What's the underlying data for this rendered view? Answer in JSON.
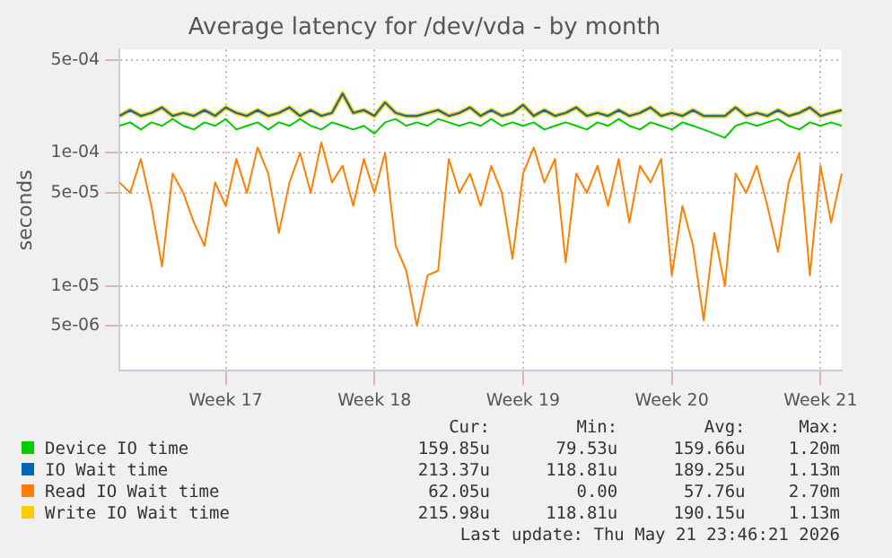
{
  "chart_data": {
    "type": "line",
    "title": "Average latency for /dev/vda - by month",
    "ylabel": "seconds",
    "log": "y",
    "grid": true,
    "legend": "bottom",
    "marker": "none",
    "line_style": "solid",
    "categories": [
      null,
      null,
      null,
      null,
      null,
      null,
      null,
      null,
      null,
      null,
      "Week 17",
      null,
      null,
      null,
      null,
      null,
      null,
      null,
      null,
      null,
      null,
      null,
      null,
      null,
      "Week 18",
      null,
      null,
      null,
      null,
      null,
      null,
      null,
      null,
      null,
      null,
      null,
      null,
      null,
      "Week 19",
      null,
      null,
      null,
      null,
      null,
      null,
      null,
      null,
      null,
      null,
      null,
      null,
      null,
      "Week 20",
      null,
      null,
      null,
      null,
      null,
      null,
      null,
      null,
      null,
      null,
      null,
      null,
      null,
      "Week 21",
      null,
      null
    ],
    "ylim": [
      2.3e-06,
      0.0006
    ],
    "yticks": [
      {
        "value": 0.0005,
        "label": "5e-04"
      },
      {
        "value": 0.0001,
        "label": "1e-04"
      },
      {
        "value": 5e-05,
        "label": "5e-05"
      },
      {
        "value": 1e-05,
        "label": "1e-05"
      },
      {
        "value": 5e-06,
        "label": "5e-06"
      }
    ],
    "series": [
      {
        "name": "Device IO time",
        "color": "#00cc00",
        "values": [
          0.00016,
          0.00017,
          0.00015,
          0.00017,
          0.00016,
          0.00018,
          0.00016,
          0.00015,
          0.00017,
          0.00016,
          0.00018,
          0.00015,
          0.00016,
          0.00017,
          0.00015,
          0.00017,
          0.00016,
          0.00018,
          0.00016,
          0.00015,
          0.00017,
          0.00016,
          0.00015,
          0.00016,
          0.00014,
          0.00017,
          0.00018,
          0.00016,
          0.00017,
          0.00016,
          0.00018,
          0.00017,
          0.00016,
          0.00017,
          0.00016,
          0.00018,
          0.00016,
          0.00017,
          0.00016,
          0.00017,
          0.00015,
          0.00016,
          0.00017,
          0.00016,
          0.00015,
          0.00017,
          0.00016,
          0.00018,
          0.00016,
          0.00015,
          0.00017,
          0.00016,
          0.00015,
          0.00017,
          0.00016,
          0.00015,
          0.00014,
          0.00013,
          0.00016,
          0.00017,
          0.00016,
          0.00017,
          0.00018,
          0.00016,
          0.00015,
          0.00017,
          0.00016,
          0.00017,
          0.00016
        ]
      },
      {
        "name": "IO Wait time",
        "color": "#0066b3",
        "values": [
          0.00019,
          0.00021,
          0.00019,
          0.0002,
          0.00022,
          0.00019,
          0.0002,
          0.00019,
          0.00021,
          0.00019,
          0.00022,
          0.0002,
          0.00019,
          0.00021,
          0.00019,
          0.0002,
          0.00022,
          0.00019,
          0.00021,
          0.00019,
          0.0002,
          0.00028,
          0.0002,
          0.00021,
          0.00019,
          0.00024,
          0.0002,
          0.00019,
          0.00019,
          0.0002,
          0.00021,
          0.00019,
          0.0002,
          0.00022,
          0.00019,
          0.00021,
          0.00019,
          0.0002,
          0.00023,
          0.00019,
          0.00021,
          0.00019,
          0.0002,
          0.00022,
          0.00019,
          0.0002,
          0.00019,
          0.00021,
          0.00019,
          0.0002,
          0.00022,
          0.00019,
          0.0002,
          0.00019,
          0.00021,
          0.00019,
          0.00019,
          0.00019,
          0.00022,
          0.00019,
          0.0002,
          0.00019,
          0.00021,
          0.00019,
          0.0002,
          0.00022,
          0.00019,
          0.0002,
          0.00021
        ]
      },
      {
        "name": "Read IO Wait time",
        "color": "#ff8000",
        "values": [
          6e-05,
          5e-05,
          9e-05,
          4e-05,
          1.4e-05,
          7e-05,
          5e-05,
          3e-05,
          2e-05,
          6e-05,
          4e-05,
          9e-05,
          5e-05,
          0.00011,
          7e-05,
          2.5e-05,
          6e-05,
          0.0001,
          5e-05,
          0.00012,
          6e-05,
          8e-05,
          4e-05,
          9e-05,
          5e-05,
          0.0001,
          2e-05,
          1.3e-05,
          5e-06,
          1.2e-05,
          1.3e-05,
          9e-05,
          5e-05,
          7e-05,
          4e-05,
          8e-05,
          5e-05,
          1.6e-05,
          7e-05,
          0.00011,
          6e-05,
          9e-05,
          1.5e-05,
          7e-05,
          5e-05,
          8e-05,
          4e-05,
          9e-05,
          3e-05,
          8e-05,
          6e-05,
          9e-05,
          1.2e-05,
          4e-05,
          2e-05,
          5.5e-06,
          2.5e-05,
          1e-05,
          7e-05,
          5e-05,
          8e-05,
          4e-05,
          1.8e-05,
          6e-05,
          0.0001,
          1.2e-05,
          8e-05,
          3e-05,
          7e-05
        ]
      },
      {
        "name": "Write IO Wait time",
        "color": "#ffcc00",
        "values": [
          0.00019,
          0.00021,
          0.00019,
          0.0002,
          0.00022,
          0.00019,
          0.0002,
          0.00019,
          0.00021,
          0.00019,
          0.00022,
          0.0002,
          0.00019,
          0.00021,
          0.00019,
          0.0002,
          0.00022,
          0.00019,
          0.00021,
          0.00019,
          0.0002,
          0.00028,
          0.0002,
          0.00021,
          0.00019,
          0.00024,
          0.0002,
          0.00019,
          0.00019,
          0.0002,
          0.00021,
          0.00019,
          0.0002,
          0.00022,
          0.00019,
          0.00021,
          0.00019,
          0.0002,
          0.00023,
          0.00019,
          0.00021,
          0.00019,
          0.0002,
          0.00022,
          0.00019,
          0.0002,
          0.00019,
          0.00021,
          0.00019,
          0.0002,
          0.00022,
          0.00019,
          0.0002,
          0.00019,
          0.00021,
          0.00019,
          0.00019,
          0.00019,
          0.00022,
          0.00019,
          0.0002,
          0.00019,
          0.00021,
          0.00019,
          0.0002,
          0.00022,
          0.00019,
          0.0002,
          0.00021
        ]
      }
    ],
    "annotations": [
      "Cur:",
      "Min:",
      "Avg:",
      "Max:",
      "159.85u",
      "79.53u",
      "159.66u",
      "1.20m",
      "213.37u",
      "118.81u",
      "189.25u",
      "1.13m",
      "62.05u",
      "0.00",
      "57.76u",
      "2.70m",
      "215.98u",
      "118.81u",
      "190.15u",
      "1.13m",
      "Last update: Thu May 21 23:46:21 2026"
    ]
  }
}
